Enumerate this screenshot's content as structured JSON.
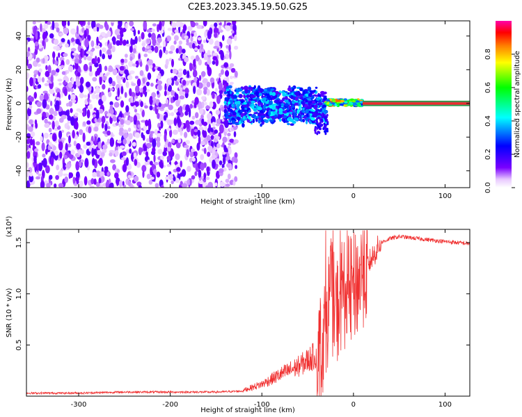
{
  "title": "C2E3.2023.345.19.50.G25",
  "colors": {
    "line": "#f03030",
    "axis": "#000000",
    "background": "#ffffff"
  },
  "chart_data": [
    {
      "type": "heatmap",
      "xlabel": "Height of straight line (km)",
      "ylabel": "Frequency (Hz)",
      "xlim": [
        -357,
        127
      ],
      "ylim": [
        -50,
        49
      ],
      "xticks": [
        -300,
        -200,
        -100,
        0,
        100
      ],
      "yticks": [
        -40,
        -20,
        0,
        20,
        40
      ],
      "grid": false,
      "colorbar": {
        "label": "Normalized spectral amplitude",
        "range": [
          0,
          1
        ],
        "ticks": [
          "0.0",
          "0.2",
          "0.4",
          "0.6",
          "0.8"
        ],
        "colormap": [
          "#ffffff",
          "#7a00ff",
          "#0000ff",
          "#00ffff",
          "#00ff00",
          "#ffff00",
          "#ff7f00",
          "#ff0000",
          "#ff00aa"
        ]
      },
      "regions": [
        {
          "x": [
            -357,
            -128
          ],
          "y": [
            -50,
            49
          ],
          "amplitude": [
            0.0,
            0.1
          ],
          "pattern": "noise"
        },
        {
          "x": [
            -140,
            -30
          ],
          "y": [
            -15,
            12
          ],
          "amplitude": [
            0.1,
            0.45
          ],
          "pattern": "cluster"
        },
        {
          "x": [
            -30,
            10
          ],
          "y": [
            -2,
            3
          ],
          "amplitude": [
            0.3,
            0.95
          ],
          "pattern": "band"
        },
        {
          "x": [
            10,
            127
          ],
          "y": [
            -1.5,
            1.5
          ],
          "amplitude": [
            0.8,
            0.9
          ],
          "pattern": "line"
        }
      ]
    },
    {
      "type": "line",
      "xlabel": "Height of straight line (km)",
      "ylabel": "SNR (10 * v/v)",
      "yscale_label": "(x10⁴)",
      "xlim": [
        -357,
        127
      ],
      "ylim": [
        0,
        1.63
      ],
      "xticks": [
        -300,
        -200,
        -100,
        0,
        100
      ],
      "yticks": [
        "0.5",
        "1.0",
        "1.5"
      ],
      "grid": false,
      "series": [
        {
          "color": "#f03030",
          "points": [
            [
              -357,
              0.03
            ],
            [
              -300,
              0.03
            ],
            [
              -250,
              0.04
            ],
            [
              -200,
              0.04
            ],
            [
              -150,
              0.04
            ],
            [
              -120,
              0.05
            ],
            [
              -100,
              0.1
            ],
            [
              -80,
              0.18
            ],
            [
              -60,
              0.25
            ],
            [
              -40,
              0.35
            ],
            [
              -30,
              0.7
            ],
            [
              -25,
              1.05
            ],
            [
              -20,
              0.8
            ],
            [
              -10,
              1.0
            ],
            [
              0,
              1.05
            ],
            [
              10,
              1.2
            ],
            [
              20,
              1.35
            ],
            [
              30,
              1.5
            ],
            [
              40,
              1.54
            ],
            [
              50,
              1.56
            ],
            [
              60,
              1.55
            ],
            [
              80,
              1.53
            ],
            [
              100,
              1.51
            ],
            [
              127,
              1.49
            ]
          ]
        }
      ]
    }
  ]
}
